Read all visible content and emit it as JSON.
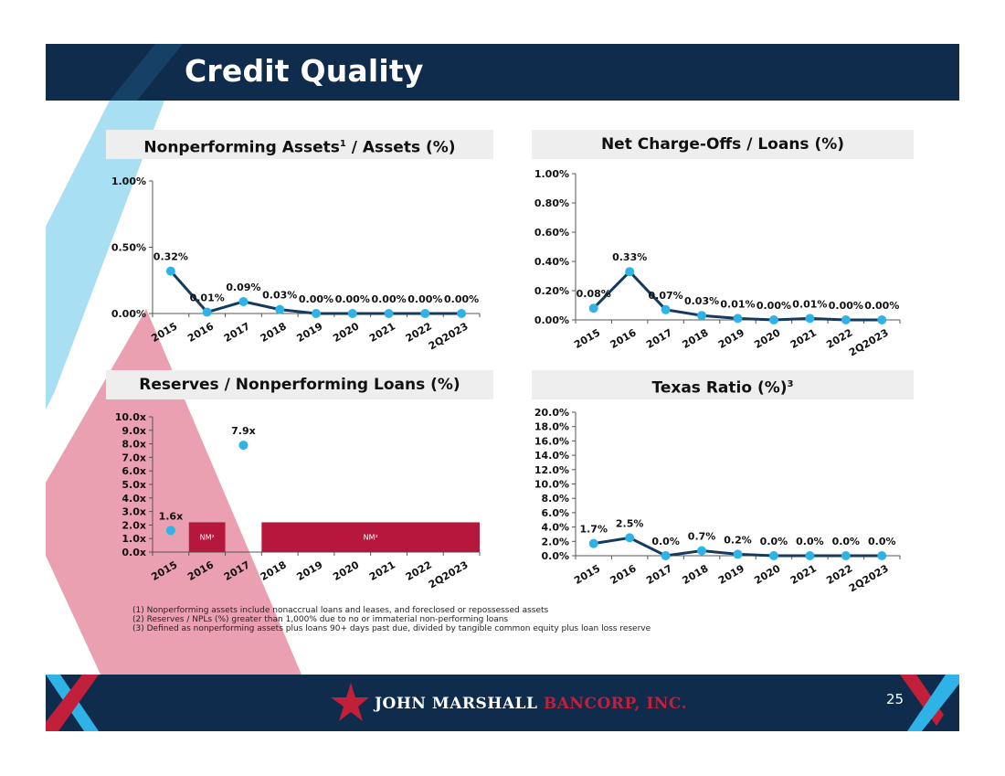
{
  "slide": {
    "title": "Credit Quality",
    "page_number": "25",
    "brand_colors": {
      "navy": "#0f2c4c",
      "light_blue": "#a8dff2",
      "pink": "#eaa0b0",
      "crimson": "#b5173d",
      "marker": "#2fb2e6",
      "line": "#163a5e"
    }
  },
  "charts": {
    "npa": {
      "title_main": "Nonperforming Assets",
      "title_sup": "1",
      "title_rest": " / Assets (%)"
    },
    "nco": {
      "title_main": "Net Charge-Offs / Loans (%)"
    },
    "reserves": {
      "title_main": "Reserves / Nonperforming Loans (%)"
    },
    "texas": {
      "title_main": "Texas Ratio (%)",
      "title_sup": "3"
    }
  },
  "chart_data": [
    {
      "id": "npa",
      "type": "line",
      "title": "Nonperforming Assets¹ / Assets (%)",
      "categories": [
        "2015",
        "2016",
        "2017",
        "2018",
        "2019",
        "2020",
        "2021",
        "2022",
        "2Q2023"
      ],
      "values": [
        0.32,
        0.01,
        0.09,
        0.03,
        0.0,
        0.0,
        0.0,
        0.0,
        0.0
      ],
      "labels": [
        "0.32%",
        "0.01%",
        "0.09%",
        "0.03%",
        "0.00%",
        "0.00%",
        "0.00%",
        "0.00%",
        "0.00%"
      ],
      "ylim": [
        0,
        1
      ],
      "yticks": [
        "0.00%",
        "0.50%",
        "1.00%"
      ]
    },
    {
      "id": "nco",
      "type": "line",
      "title": "Net Charge-Offs / Loans (%)",
      "categories": [
        "2015",
        "2016",
        "2017",
        "2018",
        "2019",
        "2020",
        "2021",
        "2022",
        "2Q2023"
      ],
      "values": [
        0.08,
        0.33,
        0.07,
        0.03,
        0.01,
        0.0,
        0.01,
        0.0,
        0.0
      ],
      "labels": [
        "0.08%",
        "0.33%",
        "0.07%",
        "0.03%",
        "0.01%",
        "0.00%",
        "0.01%",
        "0.00%",
        "0.00%"
      ],
      "ylim": [
        0,
        1
      ],
      "yticks": [
        "0.00%",
        "0.20%",
        "0.40%",
        "0.60%",
        "0.80%",
        "1.00%"
      ]
    },
    {
      "id": "reserves",
      "type": "scatter",
      "title": "Reserves / Nonperforming Loans (%)",
      "categories": [
        "2015",
        "2016",
        "2017",
        "2018",
        "2019",
        "2020",
        "2021",
        "2022",
        "2Q2023"
      ],
      "values": [
        1.6,
        null,
        7.9,
        null,
        null,
        null,
        null,
        null,
        null
      ],
      "labels": [
        "1.6x",
        "",
        "7.9x",
        "",
        "",
        "",
        "",
        "",
        ""
      ],
      "nm_ranges": [
        {
          "from": "2016",
          "to": "2016",
          "label": "NM²"
        },
        {
          "from": "2018",
          "to": "2Q2023",
          "label": "NM²"
        }
      ],
      "nm_level": 2.2,
      "ylim": [
        0,
        10
      ],
      "yticks": [
        "0.0x",
        "1.0x",
        "2.0x",
        "3.0x",
        "4.0x",
        "5.0x",
        "6.0x",
        "7.0x",
        "8.0x",
        "9.0x",
        "10.0x"
      ]
    },
    {
      "id": "texas",
      "type": "line",
      "title": "Texas Ratio (%)³",
      "categories": [
        "2015",
        "2016",
        "2017",
        "2018",
        "2019",
        "2020",
        "2021",
        "2022",
        "2Q2023"
      ],
      "values": [
        1.7,
        2.5,
        0.0,
        0.7,
        0.2,
        0.0,
        0.0,
        0.0,
        0.0
      ],
      "labels": [
        "1.7%",
        "2.5%",
        "0.0%",
        "0.7%",
        "0.2%",
        "0.0%",
        "0.0%",
        "0.0%",
        "0.0%"
      ],
      "ylim": [
        0,
        20
      ],
      "yticks": [
        "0.0%",
        "2.0%",
        "4.0%",
        "6.0%",
        "8.0%",
        "10.0%",
        "12.0%",
        "14.0%",
        "16.0%",
        "18.0%",
        "20.0%"
      ]
    }
  ],
  "footnotes": [
    "(1) Nonperforming assets include nonaccrual loans and leases, and foreclosed or repossessed assets",
    "(2) Reserves / NPLs (%) greater than 1,000% due to no or immaterial non-performing loans",
    "(3) Defined as nonperforming assets plus loans 90+ days past due, divided by tangible common equity plus loan loss reserve"
  ],
  "footer": {
    "logo_name": "JOHN MARSHALL",
    "logo_sub": "BANCORP, INC.",
    "logo_icon": "star-icon"
  }
}
